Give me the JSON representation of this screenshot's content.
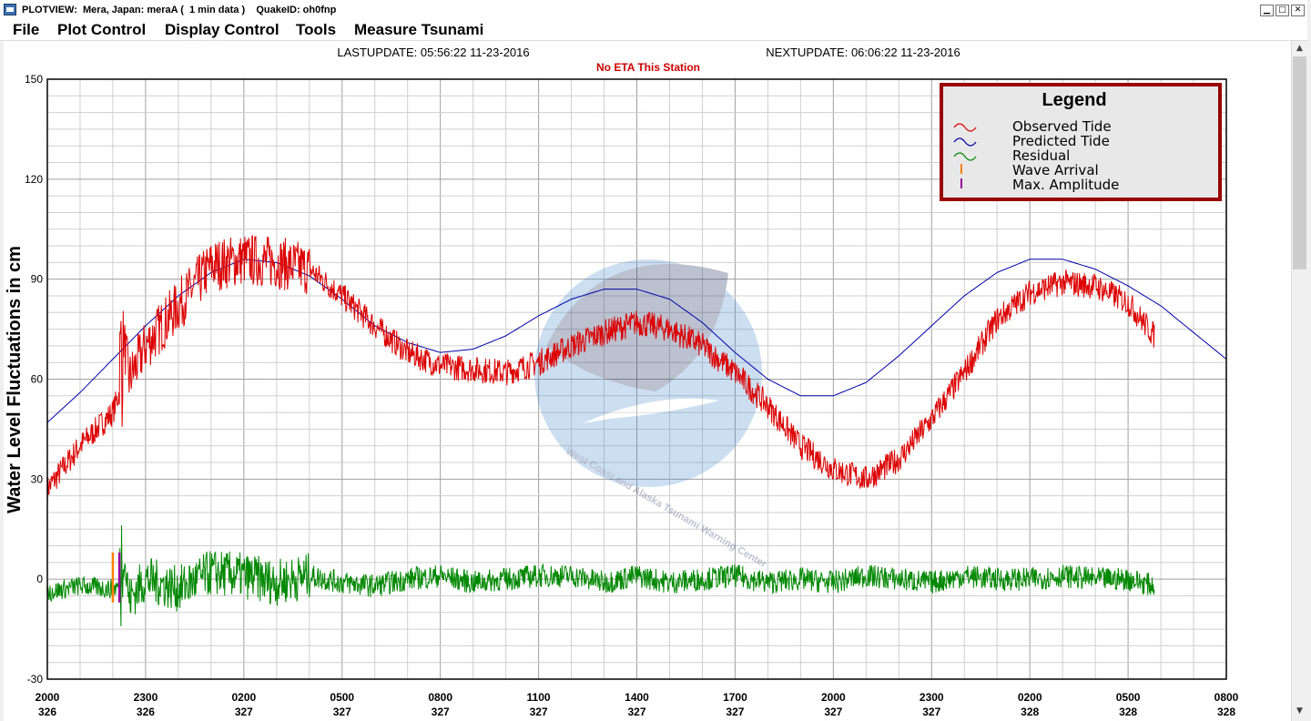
{
  "window": {
    "title": "PLOTVIEW:  Mera, Japan: meraA (  1 min data )    QuakeID: oh0fnp",
    "min_glyph": "▁",
    "max_glyph": "□",
    "close_glyph": "✕"
  },
  "menu": [
    "File",
    "Plot Control",
    "Display Control",
    "Tools",
    "Measure Tsunami"
  ],
  "scroll": {
    "up_glyph": "▲",
    "down_glyph": "▼"
  },
  "header": {
    "last_update": "LASTUPDATE: 05:56:22 11-23-2016",
    "next_update": "NEXTUPDATE: 06:06:22 11-23-2016",
    "eta": "No ETA This Station"
  },
  "colors": {
    "observed": "#dd0000",
    "predicted": "#0000aa",
    "residual": "#008800",
    "wave_arrival": "#ff8000",
    "max_amplitude": "#990099",
    "legend_border": "#990000",
    "eta_text": "#cc0000"
  },
  "logo_text": "West Coast and Alaska Tsunami Warning Center",
  "chart_data": {
    "type": "line",
    "ylabel": "Water Level Fluctuations in cm",
    "ylim": [
      -30,
      150
    ],
    "yticks": [
      -30,
      0,
      30,
      60,
      90,
      120,
      150
    ],
    "xlim": [
      0,
      36
    ],
    "x_unit": "hours since 2000 day 326",
    "xticks": [
      {
        "x": 0,
        "time": "2000",
        "day": "326"
      },
      {
        "x": 3,
        "time": "2300",
        "day": "326"
      },
      {
        "x": 6,
        "time": "0200",
        "day": "327"
      },
      {
        "x": 9,
        "time": "0500",
        "day": "327"
      },
      {
        "x": 12,
        "time": "0800",
        "day": "327"
      },
      {
        "x": 15,
        "time": "1100",
        "day": "327"
      },
      {
        "x": 18,
        "time": "1400",
        "day": "327"
      },
      {
        "x": 21,
        "time": "1700",
        "day": "327"
      },
      {
        "x": 24,
        "time": "2000",
        "day": "327"
      },
      {
        "x": 27,
        "time": "2300",
        "day": "327"
      },
      {
        "x": 30,
        "time": "0200",
        "day": "328"
      },
      {
        "x": 33,
        "time": "0500",
        "day": "328"
      },
      {
        "x": 36,
        "time": "0800",
        "day": "328"
      }
    ],
    "grid": true,
    "legend": {
      "title": "Legend",
      "placement": "top-right",
      "entries": [
        "Observed Tide",
        "Predicted Tide",
        "Residual",
        "Wave Arrival",
        "Max. Amplitude"
      ]
    },
    "series": [
      {
        "name": "Predicted Tide",
        "x": [
          0,
          1,
          2,
          3,
          4,
          5,
          6,
          7,
          8,
          9,
          10,
          11,
          12,
          13,
          14,
          15,
          16,
          17,
          18,
          19,
          20,
          21,
          22,
          23,
          24,
          25,
          26,
          27,
          28,
          29,
          30,
          31,
          32,
          33,
          34,
          35,
          36
        ],
        "y": [
          47,
          56,
          66,
          76,
          85,
          92,
          96,
          95,
          91,
          84,
          76,
          71,
          68,
          69,
          73,
          79,
          84,
          87,
          87,
          84,
          77,
          68,
          60,
          55,
          55,
          59,
          67,
          76,
          85,
          92,
          96,
          96,
          93,
          88,
          82,
          74,
          66
        ]
      },
      {
        "name": "Observed Tide",
        "x": [
          0,
          1,
          2,
          2.2,
          2.3,
          2.5,
          3,
          4,
          5,
          6,
          7,
          8,
          9,
          10,
          11,
          12,
          13,
          14,
          15,
          16,
          17,
          18,
          19,
          20,
          21,
          22,
          23,
          24,
          25,
          26,
          27,
          28,
          29,
          30,
          31,
          32,
          33,
          33.8
        ],
        "y": [
          27,
          40,
          50,
          56,
          75,
          60,
          70,
          82,
          94,
          96,
          95,
          93,
          85,
          76,
          68,
          64,
          63,
          62,
          65,
          70,
          74,
          77,
          75,
          70,
          62,
          52,
          40,
          33,
          30,
          36,
          48,
          62,
          78,
          86,
          89,
          88,
          83,
          73
        ]
      },
      {
        "name": "Residual",
        "x": [
          0,
          1,
          2,
          2.2,
          2.3,
          2.5,
          3,
          4,
          5,
          6,
          7,
          8,
          9,
          10,
          11,
          12,
          13,
          14,
          15,
          16,
          17,
          18,
          19,
          20,
          21,
          22,
          23,
          24,
          25,
          26,
          27,
          28,
          29,
          30,
          31,
          32,
          33,
          33.8
        ],
        "y": [
          -4,
          -2,
          -3,
          -2,
          10,
          -6,
          0,
          -3,
          2,
          1,
          -1,
          1,
          -1,
          -2,
          0,
          1,
          -1,
          0,
          1,
          1,
          -1,
          1,
          -1,
          0,
          1,
          -1,
          0,
          -1,
          1,
          0,
          -1,
          1,
          0,
          0,
          1,
          0,
          0,
          -2
        ]
      }
    ],
    "markers": [
      {
        "name": "Wave Arrival",
        "x": 2.0,
        "y_range": [
          -7,
          8
        ]
      },
      {
        "name": "Max. Amplitude",
        "x": 2.2,
        "y_range": [
          -7,
          8
        ]
      }
    ]
  }
}
